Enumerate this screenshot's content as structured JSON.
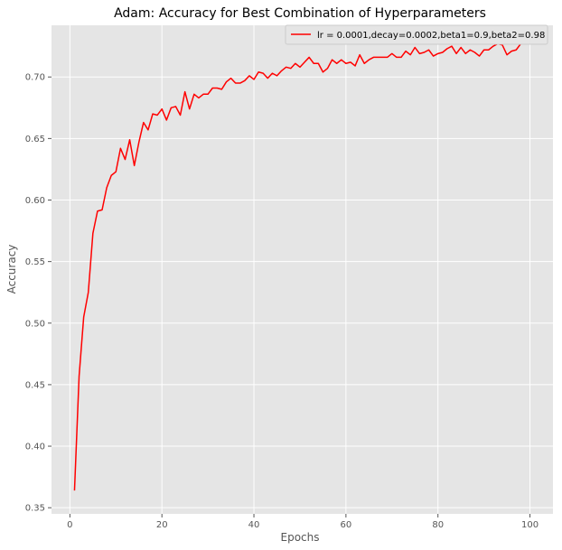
{
  "chart_data": {
    "type": "line",
    "title": "Adam: Accuracy for Best Combination of Hyperparameters",
    "xlabel": "Epochs",
    "ylabel": "Accuracy",
    "xlim": [
      -4,
      105
    ],
    "ylim": [
      0.345,
      0.742
    ],
    "xticks": [
      0,
      20,
      40,
      60,
      80,
      100
    ],
    "yticks": [
      0.35,
      0.4,
      0.45,
      0.5,
      0.55,
      0.6,
      0.65,
      0.7
    ],
    "ytick_labels": [
      "0.35",
      "0.40",
      "0.45",
      "0.50",
      "0.55",
      "0.60",
      "0.65",
      "0.70"
    ],
    "grid": true,
    "legend_position": "top-right",
    "series": [
      {
        "name": "lr = 0.0001,decay=0.0002,beta1=0.9,beta2=0.98",
        "color": "#ff0000",
        "x": [
          1,
          2,
          3,
          4,
          5,
          6,
          7,
          8,
          9,
          10,
          11,
          12,
          13,
          14,
          15,
          16,
          17,
          18,
          19,
          20,
          21,
          22,
          23,
          24,
          25,
          26,
          27,
          28,
          29,
          30,
          31,
          32,
          33,
          34,
          35,
          36,
          37,
          38,
          39,
          40,
          41,
          42,
          43,
          44,
          45,
          46,
          47,
          48,
          49,
          50,
          51,
          52,
          53,
          54,
          55,
          56,
          57,
          58,
          59,
          60,
          61,
          62,
          63,
          64,
          65,
          66,
          67,
          68,
          69,
          70,
          71,
          72,
          73,
          74,
          75,
          76,
          77,
          78,
          79,
          80,
          81,
          82,
          83,
          84,
          85,
          86,
          87,
          88,
          89,
          90,
          91,
          92,
          93,
          94,
          95,
          96,
          97,
          98,
          99,
          100
        ],
        "values": [
          0.364,
          0.457,
          0.505,
          0.525,
          0.573,
          0.591,
          0.592,
          0.61,
          0.62,
          0.623,
          0.642,
          0.633,
          0.649,
          0.628,
          0.647,
          0.663,
          0.657,
          0.67,
          0.669,
          0.674,
          0.665,
          0.675,
          0.676,
          0.669,
          0.688,
          0.674,
          0.686,
          0.683,
          0.686,
          0.686,
          0.691,
          0.691,
          0.69,
          0.696,
          0.699,
          0.695,
          0.695,
          0.697,
          0.701,
          0.698,
          0.704,
          0.703,
          0.699,
          0.703,
          0.701,
          0.705,
          0.708,
          0.707,
          0.711,
          0.708,
          0.712,
          0.716,
          0.711,
          0.711,
          0.704,
          0.707,
          0.714,
          0.711,
          0.714,
          0.711,
          0.712,
          0.709,
          0.718,
          0.711,
          0.714,
          0.716,
          0.716,
          0.716,
          0.716,
          0.719,
          0.716,
          0.716,
          0.721,
          0.718,
          0.724,
          0.719,
          0.72,
          0.722,
          0.717,
          0.719,
          0.72,
          0.723,
          0.725,
          0.719,
          0.724,
          0.719,
          0.722,
          0.72,
          0.717,
          0.722,
          0.722,
          0.725,
          0.727,
          0.726,
          0.718,
          0.721,
          0.722,
          0.727,
          0.727,
          0.729
        ]
      }
    ]
  }
}
